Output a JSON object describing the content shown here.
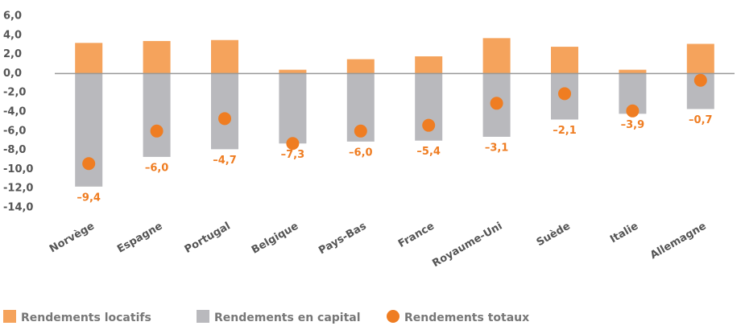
{
  "chart_data": {
    "type": "bar",
    "categories": [
      "Norvège",
      "Espagne",
      "Portugal",
      "Belgique",
      "Pays-Bas",
      "France",
      "Royaume-Uni",
      "Suède",
      "Italie",
      "Allemagne"
    ],
    "series": [
      {
        "name": "Rendements locatifs",
        "type": "bar",
        "color": "#f5a35c",
        "values": [
          3.2,
          3.4,
          3.5,
          0.4,
          1.5,
          1.8,
          3.7,
          2.8,
          0.4,
          3.1
        ]
      },
      {
        "name": "Rendements en capital",
        "type": "bar",
        "color": "#b9b9bd",
        "values": [
          -11.8,
          -8.7,
          -7.9,
          -7.3,
          -7.1,
          -7.0,
          -6.6,
          -4.8,
          -4.2,
          -3.7
        ]
      },
      {
        "name": "Rendements totaux",
        "type": "dot",
        "color": "#ef7d22",
        "values": [
          -9.4,
          -6.0,
          -4.7,
          -7.3,
          -6.0,
          -5.4,
          -3.1,
          -2.1,
          -3.9,
          -0.7
        ],
        "value_labels": [
          "–9,4",
          "–6,0",
          "–4,7",
          "–7,3",
          "–6,0",
          "–5,4",
          "–3,1",
          "–2,1",
          "–3,9",
          "–0,7"
        ]
      }
    ],
    "ylim": [
      -14,
      6
    ],
    "yticks": [
      {
        "value": -14,
        "label": "-14,0"
      },
      {
        "value": -12,
        "label": "-12,0"
      },
      {
        "value": -10,
        "label": "-10,0"
      },
      {
        "value": -8,
        "label": "-8,0"
      },
      {
        "value": -6,
        "label": "-6,0"
      },
      {
        "value": -4,
        "label": "-4,0"
      },
      {
        "value": -2,
        "label": "-2,0"
      },
      {
        "value": 0,
        "label": "0,0"
      },
      {
        "value": 2,
        "label": "2,0"
      },
      {
        "value": 4,
        "label": "4,0"
      },
      {
        "value": 6,
        "label": "6,0"
      }
    ],
    "grid": false
  }
}
